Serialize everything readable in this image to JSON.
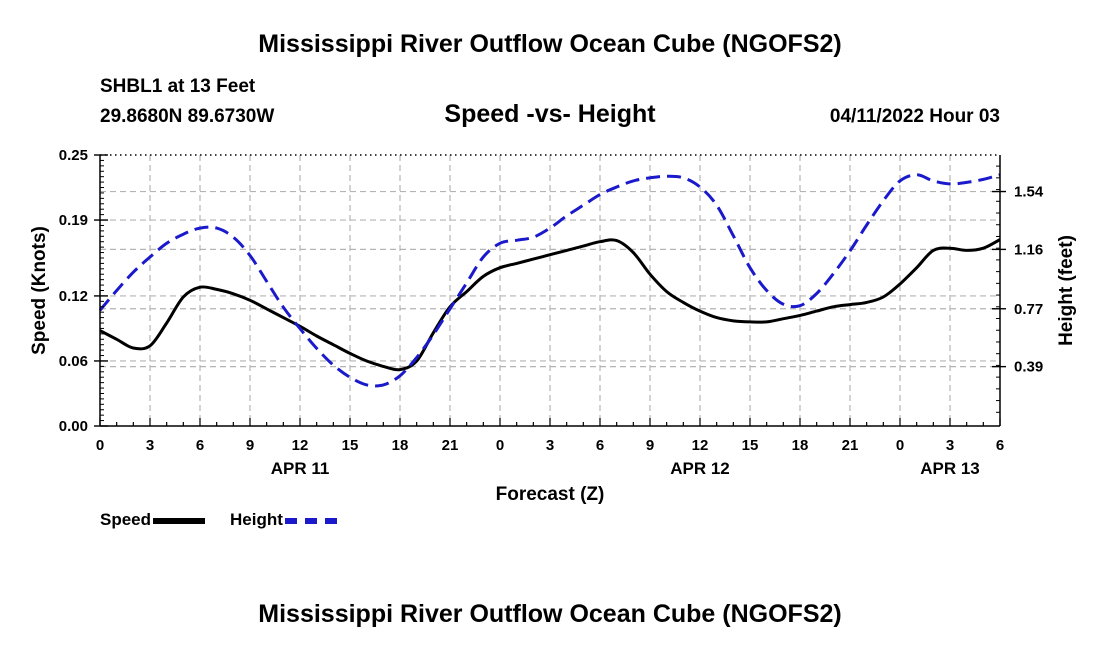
{
  "title_top": "Mississippi River Outflow Ocean Cube (NGOFS2)",
  "title_bottom": "Mississippi River Outflow Ocean Cube (NGOFS2)",
  "station": "SHBL1 at 13 Feet",
  "coords": "29.8680N  89.6730W",
  "subtitle": "Speed -vs- Height",
  "datetime": "04/11/2022 Hour 03",
  "legend": {
    "speed_label": "Speed",
    "height_label": "Height"
  },
  "colors": {
    "speed": "#000000",
    "height": "#1a1acc",
    "grid": "#b4b4b4"
  },
  "chart_data": {
    "type": "line",
    "title": "Speed -vs- Height",
    "xlabel": "Forecast (Z)",
    "ylabel": "Speed (Knots)",
    "y2label": "Height (feet)",
    "x_unit": "hours since 04/11/2022 00Z",
    "xlim": [
      0,
      54
    ],
    "x_ticks": [
      0,
      3,
      6,
      9,
      12,
      15,
      18,
      21,
      24,
      27,
      30,
      33,
      36,
      39,
      42,
      45,
      48,
      51,
      54
    ],
    "x_tick_labels": [
      "0",
      "3",
      "6",
      "9",
      "12",
      "15",
      "18",
      "21",
      "0",
      "3",
      "6",
      "9",
      "12",
      "15",
      "18",
      "21",
      "0",
      "3",
      "6"
    ],
    "date_labels": [
      {
        "x": 12,
        "label": "APR 11"
      },
      {
        "x": 36,
        "label": "APR 12"
      },
      {
        "x": 51,
        "label": "APR 13"
      }
    ],
    "ylim": [
      0,
      0.25
    ],
    "y_ticks": [
      0.0,
      0.06,
      0.12,
      0.19,
      0.25
    ],
    "y_tick_labels": [
      "0.00",
      "0.06",
      "0.12",
      "0.19",
      "0.25"
    ],
    "y2lim": [
      0.0,
      1.78
    ],
    "y2_ticks": [
      0.39,
      0.77,
      1.16,
      1.54
    ],
    "y2_tick_labels": [
      "0.39",
      "0.77",
      "1.16",
      "1.54"
    ],
    "grid": true,
    "series": [
      {
        "name": "Speed",
        "axis": "left",
        "style": "solid",
        "x": [
          0,
          1,
          2,
          3,
          4,
          5,
          6,
          7,
          8,
          9,
          10,
          11,
          12,
          13,
          14,
          15,
          16,
          17,
          18,
          19,
          20,
          21,
          22,
          23,
          24,
          25,
          26,
          27,
          28,
          29,
          30,
          31,
          32,
          33,
          34,
          35,
          36,
          37,
          38,
          39,
          40,
          41,
          42,
          43,
          44,
          45,
          46,
          47,
          48,
          49,
          50,
          51,
          52,
          53,
          54
        ],
        "values": [
          0.088,
          0.08,
          0.072,
          0.074,
          0.095,
          0.119,
          0.128,
          0.126,
          0.122,
          0.116,
          0.108,
          0.1,
          0.092,
          0.083,
          0.075,
          0.067,
          0.06,
          0.055,
          0.052,
          0.06,
          0.086,
          0.11,
          0.124,
          0.138,
          0.146,
          0.15,
          0.154,
          0.158,
          0.162,
          0.166,
          0.17,
          0.171,
          0.16,
          0.14,
          0.124,
          0.114,
          0.106,
          0.1,
          0.097,
          0.096,
          0.096,
          0.099,
          0.102,
          0.106,
          0.11,
          0.112,
          0.114,
          0.119,
          0.131,
          0.146,
          0.162,
          0.164,
          0.162,
          0.164,
          0.172
        ]
      },
      {
        "name": "Height",
        "axis": "right",
        "style": "dashed",
        "x": [
          0,
          1,
          2,
          3,
          4,
          5,
          6,
          7,
          8,
          9,
          10,
          11,
          12,
          13,
          14,
          15,
          16,
          17,
          18,
          19,
          20,
          21,
          22,
          23,
          24,
          25,
          26,
          27,
          28,
          29,
          30,
          31,
          32,
          33,
          34,
          35,
          36,
          37,
          38,
          39,
          40,
          41,
          42,
          43,
          44,
          45,
          46,
          47,
          48,
          49,
          50,
          51,
          52,
          53,
          54
        ],
        "values": [
          0.76,
          0.89,
          1.01,
          1.11,
          1.2,
          1.26,
          1.3,
          1.3,
          1.24,
          1.12,
          0.95,
          0.78,
          0.64,
          0.51,
          0.4,
          0.32,
          0.27,
          0.27,
          0.33,
          0.45,
          0.6,
          0.77,
          0.94,
          1.11,
          1.2,
          1.22,
          1.24,
          1.3,
          1.38,
          1.45,
          1.52,
          1.57,
          1.61,
          1.63,
          1.64,
          1.63,
          1.57,
          1.45,
          1.25,
          1.04,
          0.89,
          0.8,
          0.79,
          0.87,
          1.0,
          1.15,
          1.32,
          1.48,
          1.61,
          1.65,
          1.61,
          1.59,
          1.6,
          1.62,
          1.65
        ]
      }
    ]
  }
}
